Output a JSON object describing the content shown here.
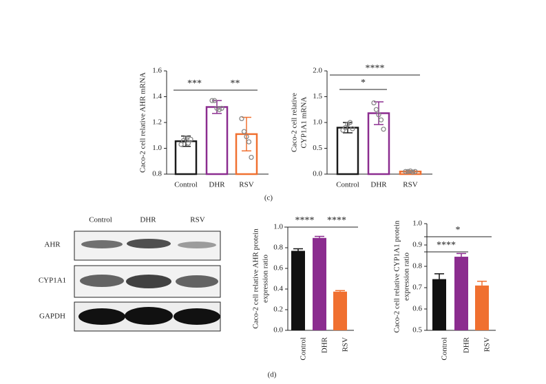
{
  "chart_data": [
    {
      "type": "bar",
      "style": "outline",
      "y_label": [
        "Caco-2 cell relative AHR mRNA"
      ],
      "categories": [
        "Control",
        "DHR",
        "RSV"
      ],
      "values": [
        1.055,
        1.32,
        1.11
      ],
      "errors": [
        0.04,
        0.05,
        0.13
      ],
      "colors": [
        "#1a1a1a",
        "#8b2c8f",
        "#f07030"
      ],
      "points": [
        [
          1.03,
          1.06,
          1.08,
          1.04,
          1.07
        ],
        [
          1.37,
          1.37,
          1.31,
          1.3,
          1.31
        ],
        [
          1.23,
          1.13,
          1.09,
          1.05,
          0.93
        ]
      ],
      "ylim": [
        0.8,
        1.6
      ],
      "yticks": [
        0.8,
        {
          "value": 1,
          "label": "1.0"
        },
        1.2,
        1.4,
        1.6
      ],
      "significance": [
        {
          "from": 0,
          "to": 1,
          "label": "***"
        },
        {
          "from": 1,
          "to": 2,
          "label": "**"
        }
      ]
    },
    {
      "type": "bar",
      "style": "outline",
      "y_label": [
        "Caco-2 cell relative",
        "CYP1A1 mRNA"
      ],
      "categories": [
        "Control",
        "DHR",
        "RSV"
      ],
      "values": [
        0.9,
        1.18,
        0.05
      ],
      "errors": [
        0.1,
        0.22,
        0.02
      ],
      "colors": [
        "#1a1a1a",
        "#8b2c8f",
        "#f07030"
      ],
      "points": [
        [
          0.85,
          0.9,
          0.97,
          1.0,
          0.88
        ],
        [
          1.38,
          1.25,
          1.15,
          1.05,
          0.87
        ],
        [
          0.05,
          0.05,
          0.06,
          0.04,
          0.05
        ]
      ],
      "ylim": [
        0,
        2
      ],
      "yticks": [
        {
          "value": 0,
          "label": "0.0"
        },
        0.5,
        {
          "value": 1,
          "label": "1.0"
        },
        1.5,
        {
          "value": 2,
          "label": "2.0"
        }
      ],
      "significance": [
        {
          "from": 0,
          "to": 1,
          "label": "*"
        },
        {
          "from": 0,
          "to": 2,
          "label": "****"
        }
      ]
    },
    {
      "type": "bar",
      "style": "filled",
      "y_label": [
        "Caco-2 cell relative AHR protein",
        "expression ratio"
      ],
      "categories": [
        "Control",
        "DHR",
        "RSV"
      ],
      "values": [
        0.77,
        0.895,
        0.375
      ],
      "errors": [
        0.02,
        0.015,
        0.01
      ],
      "colors": [
        "#111111",
        "#8b2c8f",
        "#f07030"
      ],
      "ylim": [
        0,
        1
      ],
      "yticks": [
        {
          "value": 0,
          "label": "0.0"
        },
        0.2,
        0.4,
        0.6,
        0.8,
        {
          "value": 1,
          "label": "1.0"
        }
      ],
      "significance": [
        {
          "from": 0,
          "to": 1,
          "label": "****"
        },
        {
          "from": 1,
          "to": 2,
          "label": "****"
        }
      ]
    },
    {
      "type": "bar",
      "style": "filled",
      "y_label": [
        "Caco-2 cell relative CYP1A1 protein",
        "expression ratio"
      ],
      "categories": [
        "Control",
        "DHR",
        "RSV"
      ],
      "values": [
        0.74,
        0.845,
        0.71
      ],
      "errors": [
        0.025,
        0.015,
        0.02
      ],
      "colors": [
        "#111111",
        "#8b2c8f",
        "#f07030"
      ],
      "ylim": [
        0.5,
        1
      ],
      "yticks": [
        0.5,
        0.6,
        0.7,
        0.8,
        0.9,
        {
          "value": 1,
          "label": "1.0"
        }
      ],
      "significance": [
        {
          "from": 0,
          "to": 2,
          "label": "*"
        },
        {
          "from": 0,
          "to": 1,
          "label": "****"
        }
      ]
    }
  ],
  "panel_labels": [
    "(c)",
    "(d)"
  ],
  "western_blot": {
    "columns": [
      "Control",
      "DHR",
      "RSV"
    ],
    "rows": [
      "AHR",
      "CYP1A1",
      "GAPDH"
    ]
  }
}
